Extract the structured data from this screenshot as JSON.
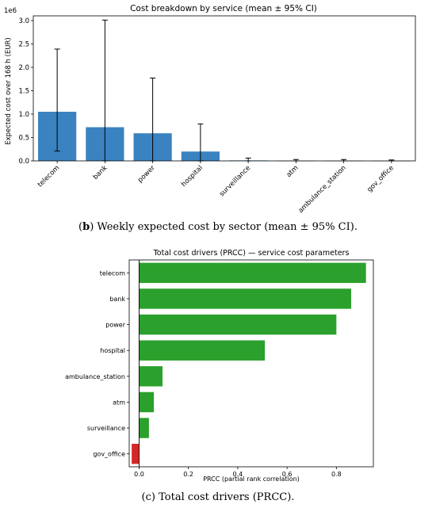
{
  "chart_data": [
    {
      "type": "bar",
      "title": "Cost breakdown by service (mean ± 95% CI)",
      "ylabel": "Expected cost over 168 h (EUR)",
      "y_offset_text": "1e6",
      "ylim": [
        0,
        3.1
      ],
      "yticks": [
        "0.0",
        "0.5",
        "1.0",
        "1.5",
        "2.0",
        "2.5",
        "3.0"
      ],
      "ytick_values": [
        0,
        0.5,
        1.0,
        1.5,
        2.0,
        2.5,
        3.0
      ],
      "categories": [
        "telecom",
        "bank",
        "power",
        "hospital",
        "surveillance",
        "atm",
        "ambulance_station",
        "gov_office"
      ],
      "values": [
        1.05,
        0.72,
        0.59,
        0.2,
        0.01,
        0.005,
        0.004,
        0.002
      ],
      "ci_low": [
        0.21,
        0.0,
        0.0,
        0.0,
        0.0,
        0.0,
        0.0,
        0.0
      ],
      "ci_high": [
        2.39,
        3.01,
        1.77,
        0.79,
        0.06,
        0.03,
        0.03,
        0.02
      ],
      "bar_color": "#3a83c0",
      "caption_label": "b",
      "caption_text": " Weekly expected cost by sector (mean ± 95% CI)."
    },
    {
      "type": "bar",
      "orientation": "horizontal",
      "title": "Total cost drivers (PRCC) — service cost parameters",
      "xlabel": "PRCC (partial rank correlation)",
      "xlim": [
        -0.04,
        0.95
      ],
      "xticks": [
        "0.0",
        "0.2",
        "0.4",
        "0.6",
        "0.8"
      ],
      "xtick_values": [
        0,
        0.2,
        0.4,
        0.6,
        0.8
      ],
      "categories": [
        "telecom",
        "bank",
        "power",
        "hospital",
        "ambulance_station",
        "atm",
        "surveillance",
        "gov_office"
      ],
      "values": [
        0.92,
        0.86,
        0.8,
        0.51,
        0.095,
        0.06,
        0.04,
        -0.03
      ],
      "positive_color": "#2ca02c",
      "negative_color": "#d62728",
      "caption_label": "c",
      "caption_text": " Total cost drivers (PRCC)."
    }
  ]
}
